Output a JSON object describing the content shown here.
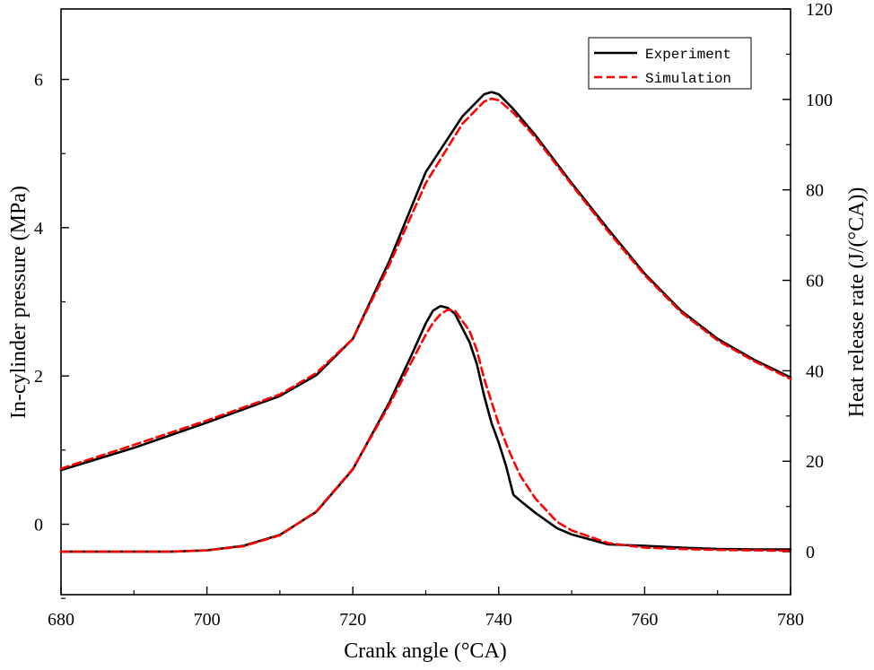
{
  "chart_data": {
    "type": "line",
    "xlabel": "Crank angle (°CA)",
    "ylabel_left": "In-cylinder pressure (MPa)",
    "ylabel_right": "Heat release rate (J/(°CA))",
    "xlim": [
      680,
      780
    ],
    "ylim_left": [
      -0.95,
      6.95
    ],
    "ylim_right": [
      -9.5,
      120
    ],
    "x_ticks": [
      680,
      700,
      720,
      740,
      760,
      780
    ],
    "y_left_ticks": [
      0,
      2,
      4,
      6
    ],
    "y_right_ticks": [
      0,
      20,
      40,
      60,
      80,
      100,
      120
    ],
    "legend": {
      "position": "top-right",
      "entries": [
        "Experiment",
        "Simulation"
      ]
    },
    "colors": {
      "experiment": "#000000",
      "simulation": "#ff0000"
    },
    "series": [
      {
        "name": "Experiment",
        "quantity": "pressure",
        "axis": "left",
        "style": "solid",
        "x": [
          680,
          690,
          700,
          710,
          715,
          720,
          725,
          730,
          735,
          738,
          739,
          740,
          742,
          745,
          750,
          755,
          760,
          765,
          770,
          775,
          780
        ],
        "y": [
          0.73,
          1.03,
          1.37,
          1.73,
          2.01,
          2.5,
          3.55,
          4.75,
          5.5,
          5.8,
          5.83,
          5.8,
          5.6,
          5.25,
          4.6,
          3.98,
          3.38,
          2.88,
          2.5,
          2.22,
          1.98
        ]
      },
      {
        "name": "Simulation",
        "quantity": "pressure",
        "axis": "left",
        "style": "dashed",
        "x": [
          680,
          690,
          700,
          710,
          715,
          720,
          725,
          730,
          735,
          738,
          739,
          740,
          742,
          745,
          750,
          755,
          760,
          765,
          770,
          775,
          780
        ],
        "y": [
          0.75,
          1.07,
          1.4,
          1.75,
          2.04,
          2.5,
          3.5,
          4.6,
          5.4,
          5.7,
          5.74,
          5.72,
          5.55,
          5.22,
          4.58,
          3.95,
          3.36,
          2.86,
          2.48,
          2.2,
          1.96
        ]
      },
      {
        "name": "Experiment",
        "quantity": "heat_release_rate",
        "axis": "right",
        "style": "solid",
        "x": [
          680,
          695,
          700,
          705,
          710,
          715,
          720,
          725,
          728,
          730,
          731,
          732,
          733,
          734,
          736,
          737,
          738,
          739,
          740,
          741,
          742,
          743,
          745,
          748,
          750,
          755,
          760,
          765,
          770,
          775,
          780
        ],
        "y": [
          0,
          0,
          0.3,
          1.3,
          3.7,
          8.8,
          18.2,
          33,
          43.3,
          50.5,
          53.3,
          54.3,
          53.9,
          52.6,
          46.3,
          41.5,
          34.5,
          28.5,
          24.1,
          19,
          12.6,
          11.2,
          8.6,
          5.2,
          3.8,
          1.6,
          1.3,
          0.9,
          0.6,
          0.5,
          0.5
        ]
      },
      {
        "name": "Simulation",
        "quantity": "heat_release_rate",
        "axis": "right",
        "style": "dashed",
        "x": [
          680,
          695,
          700,
          705,
          710,
          715,
          720,
          725,
          728,
          730,
          731,
          732,
          733,
          734,
          736,
          737,
          738,
          739,
          740,
          741,
          742,
          743,
          745,
          748,
          750,
          755,
          760,
          765,
          770,
          775,
          780
        ],
        "y": [
          0,
          0,
          0.3,
          1.2,
          3.6,
          8.9,
          18.3,
          32.5,
          41.8,
          48,
          50.6,
          52.5,
          53.5,
          53.3,
          48.8,
          44.6,
          38.3,
          33.2,
          28.2,
          23.9,
          20.1,
          16.7,
          11.8,
          6.6,
          4.7,
          1.9,
          0.9,
          0.6,
          0.4,
          0.3,
          0.2
        ]
      }
    ]
  }
}
